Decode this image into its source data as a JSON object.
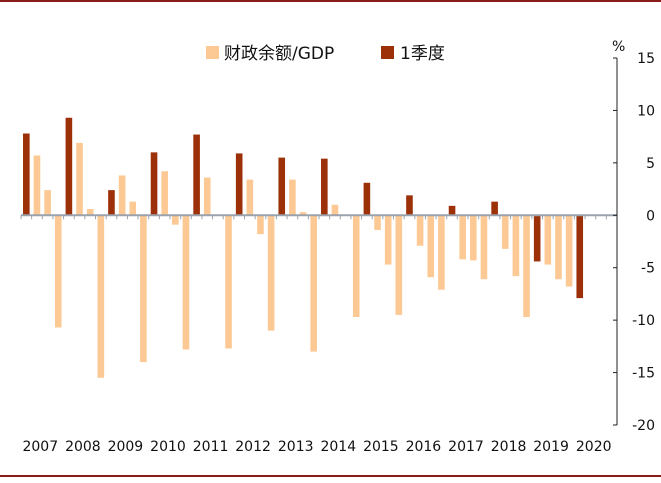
{
  "chart_data": {
    "type": "bar",
    "title": "",
    "y_unit": "%",
    "ylim": [
      -20,
      15
    ],
    "y_ticks": [
      "15",
      "10",
      "5",
      "0",
      "-5",
      "-10",
      "-15",
      "-20"
    ],
    "y_tick_values": [
      15,
      10,
      5,
      0,
      -5,
      -10,
      -15,
      -20
    ],
    "year_labels": [
      "2007",
      "2008",
      "2009",
      "2010",
      "2011",
      "2012",
      "2013",
      "2014",
      "2015",
      "2016",
      "2017",
      "2018",
      "2019",
      "2020"
    ],
    "quarters_per_year": 4,
    "legend_position": "top-center",
    "series": [
      {
        "name": "财政余额/GDP",
        "color": "#fcc994",
        "values": [
          null,
          5.7,
          2.4,
          -10.7,
          null,
          6.9,
          0.6,
          -15.5,
          null,
          3.8,
          1.3,
          -14.0,
          null,
          4.2,
          -0.9,
          -12.8,
          null,
          3.6,
          0,
          -12.7,
          null,
          3.4,
          -1.8,
          -11.0,
          null,
          3.4,
          0.3,
          -13.0,
          null,
          1.0,
          0,
          -9.7,
          null,
          -1.4,
          -4.7,
          -9.5,
          null,
          -2.9,
          -5.9,
          -7.1,
          null,
          -4.2,
          -4.3,
          -6.1,
          null,
          -3.2,
          -5.8,
          -9.7,
          null,
          -4.7,
          -6.1,
          -6.8,
          null,
          null,
          null,
          null
        ]
      },
      {
        "name": "1季度",
        "color": "#9c3008",
        "values": [
          7.8,
          null,
          null,
          null,
          9.3,
          null,
          null,
          null,
          2.4,
          null,
          null,
          null,
          6.0,
          null,
          null,
          null,
          7.7,
          null,
          null,
          null,
          5.9,
          null,
          null,
          null,
          5.5,
          null,
          null,
          null,
          5.4,
          null,
          null,
          null,
          3.1,
          null,
          null,
          null,
          1.9,
          null,
          null,
          null,
          0.9,
          null,
          null,
          null,
          1.3,
          null,
          null,
          null,
          -4.4,
          null,
          null,
          null,
          -7.9,
          null,
          null,
          null
        ]
      }
    ]
  }
}
